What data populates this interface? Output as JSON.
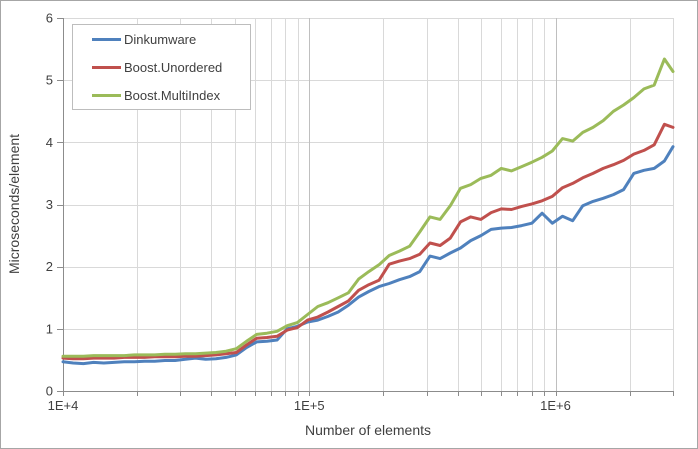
{
  "chart_data": {
    "type": "line",
    "title": "",
    "xlabel": "Number of elements",
    "ylabel": "Microseconds/element",
    "x_scale": "log",
    "x_range": [
      10000,
      3000000
    ],
    "y_range": [
      0,
      6
    ],
    "grid": "on",
    "legend_position": "top-left",
    "y_ticks": [
      0,
      1,
      2,
      3,
      4,
      5,
      6
    ],
    "x_tick_labels": [
      {
        "value": 10000,
        "label": "1E+4"
      },
      {
        "value": 100000,
        "label": "1E+5"
      },
      {
        "value": 1000000,
        "label": "1E+6"
      }
    ],
    "colors": {
      "grid_minor": "#D9D9D9",
      "grid_major": "#BFBFBF",
      "axis": "#8C8C8C",
      "text": "#404040",
      "frame_border": "#A6A6A6",
      "legend_border": "#BDBDBD",
      "background": "#FFFFFF"
    },
    "x": [
      10000,
      11000,
      12100,
      13310,
      14641,
      16105,
      17716,
      19487,
      21436,
      23579,
      25937,
      28531,
      31384,
      34523,
      37975,
      41772,
      45950,
      50545,
      55599,
      61159,
      67275,
      74002,
      81403,
      89543,
      98497,
      108347,
      119181,
      131100,
      144210,
      158631,
      174494,
      191943,
      211138,
      232252,
      255477,
      281024,
      309127,
      340040,
      374043,
      411448,
      452593,
      497852,
      547637,
      602401,
      662641,
      728905,
      801795,
      881975,
      970172,
      1067190,
      1173909,
      1291299,
      1420429,
      1562472,
      1718719,
      1890591,
      2079650,
      2287615,
      2516377,
      2768014,
      3000000
    ],
    "series": [
      {
        "name": "Dinkumware",
        "color": "#4F81BD",
        "values": [
          0.47,
          0.45,
          0.44,
          0.46,
          0.45,
          0.46,
          0.47,
          0.47,
          0.48,
          0.48,
          0.49,
          0.49,
          0.51,
          0.53,
          0.51,
          0.52,
          0.54,
          0.58,
          0.7,
          0.79,
          0.8,
          0.82,
          1.0,
          1.04,
          1.11,
          1.14,
          1.2,
          1.27,
          1.38,
          1.51,
          1.6,
          1.68,
          1.73,
          1.79,
          1.84,
          1.92,
          2.17,
          2.13,
          2.22,
          2.3,
          2.42,
          2.5,
          2.6,
          2.62,
          2.63,
          2.66,
          2.7,
          2.86,
          2.7,
          2.81,
          2.74,
          2.98,
          3.05,
          3.1,
          3.16,
          3.24,
          3.5,
          3.55,
          3.58,
          3.7,
          3.93
        ]
      },
      {
        "name": "Boost.Unordered",
        "color": "#C0504D",
        "values": [
          0.53,
          0.52,
          0.52,
          0.53,
          0.53,
          0.53,
          0.54,
          0.54,
          0.54,
          0.55,
          0.55,
          0.55,
          0.56,
          0.56,
          0.57,
          0.58,
          0.6,
          0.62,
          0.74,
          0.85,
          0.86,
          0.88,
          0.98,
          1.02,
          1.14,
          1.19,
          1.27,
          1.36,
          1.45,
          1.62,
          1.71,
          1.78,
          2.04,
          2.09,
          2.13,
          2.2,
          2.38,
          2.34,
          2.46,
          2.72,
          2.8,
          2.76,
          2.87,
          2.93,
          2.92,
          2.97,
          3.01,
          3.06,
          3.13,
          3.27,
          3.34,
          3.43,
          3.5,
          3.58,
          3.64,
          3.71,
          3.81,
          3.87,
          3.96,
          4.29,
          4.24
        ]
      },
      {
        "name": "Boost.MultiIndex",
        "color": "#9BBB59",
        "values": [
          0.56,
          0.56,
          0.56,
          0.57,
          0.57,
          0.57,
          0.57,
          0.58,
          0.58,
          0.58,
          0.59,
          0.59,
          0.6,
          0.6,
          0.61,
          0.62,
          0.64,
          0.68,
          0.8,
          0.91,
          0.93,
          0.96,
          1.05,
          1.1,
          1.23,
          1.36,
          1.42,
          1.5,
          1.58,
          1.8,
          1.92,
          2.03,
          2.18,
          2.25,
          2.33,
          2.56,
          2.8,
          2.76,
          2.98,
          3.26,
          3.32,
          3.42,
          3.47,
          3.58,
          3.54,
          3.61,
          3.68,
          3.76,
          3.86,
          4.06,
          4.02,
          4.16,
          4.24,
          4.35,
          4.5,
          4.6,
          4.72,
          4.86,
          4.92,
          5.34,
          5.14
        ]
      }
    ]
  }
}
